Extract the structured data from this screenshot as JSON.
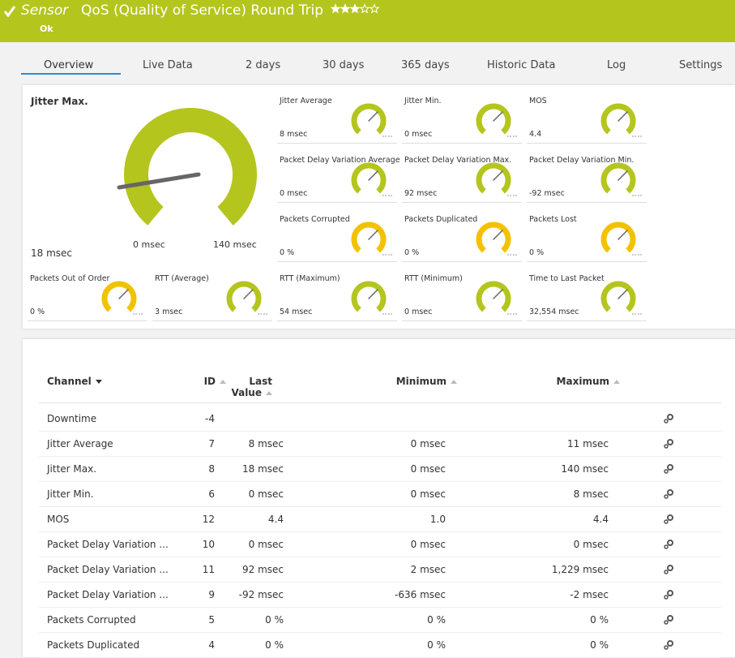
{
  "header": {
    "sensor_label": "Sensor",
    "title": "QoS (Quality of Service) Round Trip",
    "status": "Ok"
  },
  "tabs": [
    "Overview",
    "Live Data",
    "2  days",
    "30  days",
    "365  days",
    "Historic Data",
    "Log",
    "Settings"
  ],
  "overview": {
    "primary_gauge": {
      "label": "Jitter Max.",
      "value": "18 msec",
      "min": "0 msec",
      "max": "140 msec",
      "color": "#b4c51d"
    },
    "gauges": [
      {
        "label": "Jitter Average",
        "value": "8 msec",
        "color": "#b4c51d"
      },
      {
        "label": "Jitter Min.",
        "value": "0 msec",
        "color": "#b4c51d"
      },
      {
        "label": "MOS",
        "value": "4.4",
        "color": "#b4c51d"
      },
      {
        "label": "Packet Delay Variation Average",
        "value": "0 msec",
        "color": "#b4c51d"
      },
      {
        "label": "Packet Delay Variation Max.",
        "value": "92 msec",
        "color": "#b4c51d"
      },
      {
        "label": "Packet Delay Variation Min.",
        "value": "-92 msec",
        "color": "#b4c51d"
      },
      {
        "label": "Packets Corrupted",
        "value": "0 %",
        "color": "#f2c200"
      },
      {
        "label": "Packets Duplicated",
        "value": "0 %",
        "color": "#f2c200"
      },
      {
        "label": "Packets Lost",
        "value": "0 %",
        "color": "#f2c200"
      },
      {
        "label": "Packets Out of Order",
        "value": "0 %",
        "color": "#f2c200"
      },
      {
        "label": "RTT (Average)",
        "value": "3 msec",
        "color": "#b4c51d"
      },
      {
        "label": "RTT (Maximum)",
        "value": "54 msec",
        "color": "#b4c51d"
      },
      {
        "label": "RTT (Minimum)",
        "value": "0 msec",
        "color": "#b4c51d"
      },
      {
        "label": "Time to Last Packet",
        "value": "32,554 msec",
        "color": "#b4c51d"
      }
    ]
  },
  "table": {
    "columns": [
      "Channel",
      "ID",
      "Last Value",
      "Minimum",
      "Maximum"
    ],
    "rows": [
      [
        "Downtime",
        -4,
        null,
        null,
        null
      ],
      [
        "Jitter Average",
        7,
        "8 msec",
        "0 msec",
        "11 msec"
      ],
      [
        "Jitter Max.",
        8,
        "18 msec",
        "0 msec",
        "140 msec"
      ],
      [
        "Jitter Min.",
        6,
        "0 msec",
        "0 msec",
        "8 msec"
      ],
      [
        "MOS",
        12,
        "4.4",
        "1.0",
        "4.4"
      ],
      [
        "Packet Delay Variation ...",
        10,
        "0 msec",
        "0 msec",
        "0 msec"
      ],
      [
        "Packet Delay Variation ...",
        11,
        "92 msec",
        "2 msec",
        "1,229 msec"
      ],
      [
        "Packet Delay Variation ...",
        9,
        "-92 msec",
        "-636 msec",
        "-2 msec"
      ],
      [
        "Packets Corrupted",
        5,
        "0 %",
        "0 %",
        "0 %"
      ],
      [
        "Packets Duplicated",
        4,
        "0 %",
        "0 %",
        "0 %"
      ]
    ]
  }
}
